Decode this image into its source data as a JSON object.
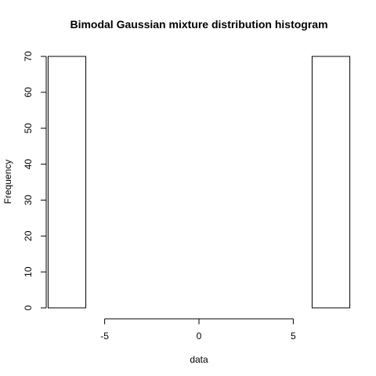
{
  "chart_data": {
    "type": "bar",
    "title": "Bimodal Gaussian mixture distribution histogram",
    "xlabel": "data",
    "ylabel": "Frequency",
    "xlim": [
      -8.1,
      8.1
    ],
    "ylim": [
      0,
      70
    ],
    "x_ticks": [
      -5,
      0,
      5
    ],
    "x_tick_labels": [
      "-5",
      "0",
      "5"
    ],
    "y_ticks": [
      0,
      10,
      20,
      30,
      40,
      50,
      60,
      70
    ],
    "y_tick_labels": [
      "0",
      "10",
      "20",
      "30",
      "40",
      "50",
      "60",
      "70"
    ],
    "bins": [
      {
        "from": -8,
        "to": -6,
        "count": 70
      },
      {
        "from": -6,
        "to": -4,
        "count": 0
      },
      {
        "from": -4,
        "to": -2,
        "count": 0
      },
      {
        "from": -2,
        "to": 0,
        "count": 0
      },
      {
        "from": 0,
        "to": 2,
        "count": 0
      },
      {
        "from": 2,
        "to": 4,
        "count": 0
      },
      {
        "from": 4,
        "to": 6,
        "count": 0
      },
      {
        "from": 6,
        "to": 8,
        "count": 70
      }
    ],
    "grid": false,
    "legend": "none"
  }
}
